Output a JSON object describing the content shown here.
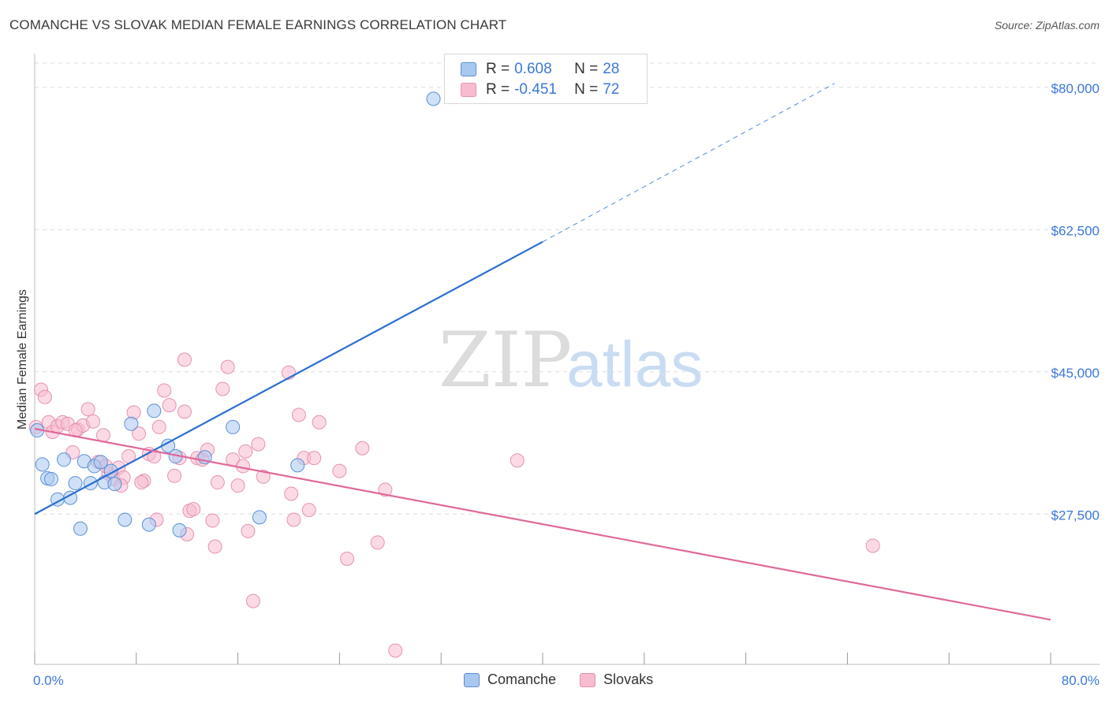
{
  "header": {
    "title": "COMANCHE VS SLOVAK MEDIAN FEMALE EARNINGS CORRELATION CHART",
    "source": "Source: ZipAtlas.com"
  },
  "legend": {
    "rows": [
      {
        "r_label": "R =",
        "r_value": "0.608",
        "n_label": "N =",
        "n_value": "28"
      },
      {
        "r_label": "R =",
        "r_value": "-0.451",
        "n_label": "N =",
        "n_value": "72"
      }
    ]
  },
  "bottom_legend": {
    "series1": "Comanche",
    "series2": "Slovaks"
  },
  "watermark": {
    "zip": "ZIP",
    "atlas": "atlas"
  },
  "colors": {
    "comanche_fill": "#a9c8f0",
    "comanche_stroke": "#5b8fd6",
    "comanche_line": "#2a6fd0",
    "slovak_fill": "#f7bcd0",
    "slovak_stroke": "#e692b0",
    "slovak_line": "#e0689a",
    "axis_text": "#3c78d8",
    "grid": "#dddddd"
  },
  "chart_data": {
    "type": "scatter",
    "title": "COMANCHE VS SLOVAK MEDIAN FEMALE EARNINGS CORRELATION CHART",
    "xlabel": "",
    "ylabel": "Median Female Earnings",
    "xlim": [
      0,
      80
    ],
    "ylim": [
      9000,
      83000
    ],
    "x_tick_labels": [
      "0.0%",
      "80.0%"
    ],
    "y_ticks": [
      {
        "value": 27500,
        "label": "$27,500"
      },
      {
        "value": 45000,
        "label": "$45,000"
      },
      {
        "value": 62500,
        "label": "$62,500"
      },
      {
        "value": 80000,
        "label": "$80,000"
      }
    ],
    "series": [
      {
        "name": "Comanche",
        "r": 0.608,
        "n": 28,
        "trend": {
          "x0": 0,
          "y0": 27500,
          "x_solid_end": 40,
          "y_solid_end": 61000,
          "x1": 63,
          "y1": 80500
        },
        "points": [
          [
            0.2,
            37800
          ],
          [
            0.6,
            33600
          ],
          [
            1.0,
            31900
          ],
          [
            1.3,
            31800
          ],
          [
            1.8,
            29300
          ],
          [
            2.3,
            34200
          ],
          [
            2.8,
            29500
          ],
          [
            3.2,
            31300
          ],
          [
            3.6,
            25700
          ],
          [
            3.9,
            34000
          ],
          [
            4.4,
            31300
          ],
          [
            4.7,
            33400
          ],
          [
            5.2,
            33900
          ],
          [
            5.5,
            31400
          ],
          [
            6.0,
            32800
          ],
          [
            6.3,
            31200
          ],
          [
            7.1,
            26800
          ],
          [
            7.6,
            38600
          ],
          [
            9.0,
            26200
          ],
          [
            9.4,
            40200
          ],
          [
            10.5,
            35900
          ],
          [
            11.1,
            34600
          ],
          [
            11.4,
            25500
          ],
          [
            13.4,
            34500
          ],
          [
            15.6,
            38200
          ],
          [
            17.7,
            27100
          ],
          [
            20.7,
            33500
          ],
          [
            31.4,
            78600
          ]
        ]
      },
      {
        "name": "Slovaks",
        "r": -0.451,
        "n": 72,
        "trend": {
          "x0": 0,
          "y0": 38000,
          "x1": 80,
          "y1": 14500
        },
        "points": [
          [
            0.1,
            38200
          ],
          [
            0.5,
            42800
          ],
          [
            0.8,
            41900
          ],
          [
            1.1,
            38800
          ],
          [
            1.4,
            37600
          ],
          [
            1.8,
            38300
          ],
          [
            2.2,
            38800
          ],
          [
            2.6,
            38600
          ],
          [
            3.0,
            35100
          ],
          [
            3.4,
            37900
          ],
          [
            3.8,
            38400
          ],
          [
            4.2,
            40400
          ],
          [
            4.6,
            38900
          ],
          [
            5.0,
            33900
          ],
          [
            5.4,
            37200
          ],
          [
            5.8,
            32500
          ],
          [
            6.2,
            31800
          ],
          [
            6.6,
            33200
          ],
          [
            7.0,
            32000
          ],
          [
            7.4,
            34600
          ],
          [
            7.8,
            40000
          ],
          [
            8.2,
            37400
          ],
          [
            8.6,
            31600
          ],
          [
            9.0,
            34900
          ],
          [
            9.4,
            34600
          ],
          [
            9.8,
            38200
          ],
          [
            10.2,
            42700
          ],
          [
            10.6,
            40900
          ],
          [
            11.0,
            32200
          ],
          [
            11.4,
            34400
          ],
          [
            11.8,
            40100
          ],
          [
            12.2,
            27900
          ],
          [
            12.5,
            28100
          ],
          [
            12.8,
            34400
          ],
          [
            13.2,
            34200
          ],
          [
            13.6,
            35400
          ],
          [
            14.0,
            26700
          ],
          [
            14.4,
            31400
          ],
          [
            14.8,
            42900
          ],
          [
            15.2,
            45600
          ],
          [
            15.6,
            34200
          ],
          [
            16.0,
            31000
          ],
          [
            16.4,
            33400
          ],
          [
            16.8,
            25400
          ],
          [
            17.2,
            16800
          ],
          [
            17.6,
            36100
          ],
          [
            18.0,
            32100
          ],
          [
            20.0,
            44900
          ],
          [
            20.4,
            26800
          ],
          [
            20.8,
            39700
          ],
          [
            21.2,
            34400
          ],
          [
            21.6,
            28000
          ],
          [
            22.0,
            34400
          ],
          [
            22.4,
            38800
          ],
          [
            24.0,
            32800
          ],
          [
            24.6,
            22000
          ],
          [
            25.8,
            35600
          ],
          [
            27.0,
            24000
          ],
          [
            27.6,
            30500
          ],
          [
            28.4,
            10700
          ],
          [
            38.0,
            34100
          ],
          [
            66.0,
            23600
          ],
          [
            11.8,
            46500
          ],
          [
            9.6,
            26800
          ],
          [
            8.4,
            31400
          ],
          [
            5.6,
            33400
          ],
          [
            6.8,
            31000
          ],
          [
            3.2,
            37800
          ],
          [
            12.0,
            25000
          ],
          [
            16.6,
            35200
          ],
          [
            14.2,
            23500
          ],
          [
            20.2,
            30000
          ]
        ]
      }
    ]
  }
}
